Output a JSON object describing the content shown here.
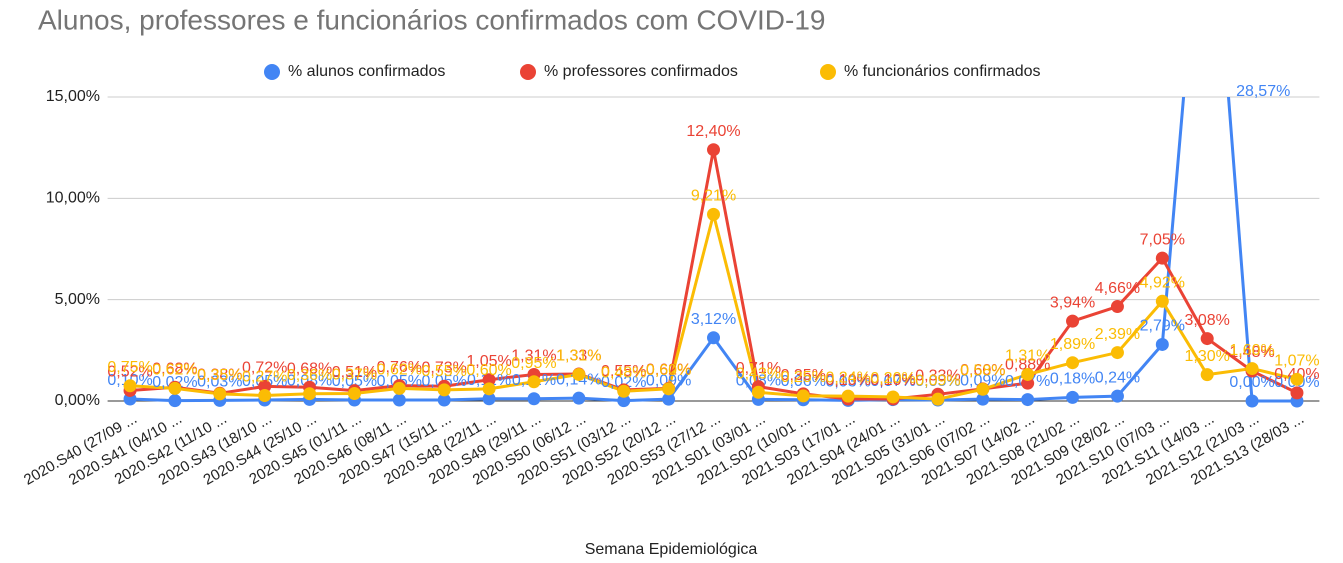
{
  "chart_data": {
    "type": "line",
    "title": "Alunos, professores e funcionários confirmados com COVID-19",
    "x_label": "Semana Epidemiológica",
    "categories": [
      "2020.S40 (27/09 ...",
      "2020.S41 (04/10 ...",
      "2020.S42 (11/10 ...",
      "2020.S43 (18/10 ...",
      "2020.S44 (25/10 ...",
      "2020.S45 (01/11 ...",
      "2020.S46 (08/11 ...",
      "2020.S47 (15/11 ...",
      "2020.S48 (22/11 ...",
      "2020.S49 (29/11 ...",
      "2020.S50 (06/12 ...",
      "2020.S51 (03/12 ...",
      "2020.S52 (20/12 ...",
      "2020.S53 (27/12 ...",
      "2021.S01 (03/01 ...",
      "2021.S02 (10/01 ...",
      "2021.S03 (17/01 ...",
      "2021.S04 (24/01 ...",
      "2021.S05 (31/01 ...",
      "2021.S06 (07/02 ...",
      "2021.S07 (14/02 ...",
      "2021.S08 (21/02 ...",
      "2021.S09 (28/02 ...",
      "2021.S10 (07/03 ...",
      "2021.S11 (14/03 ...",
      "2021.S12 (21/03 ...",
      "2021.S13 (28/03 ..."
    ],
    "series": [
      {
        "name": "% alunos confirmados",
        "color": "#4285f4",
        "values": [
          0.1,
          0.02,
          0.03,
          0.05,
          0.08,
          0.05,
          0.05,
          0.05,
          0.11,
          0.11,
          0.14,
          0.02,
          0.09,
          3.12,
          0.08,
          0.06,
          0.03,
          0.07,
          0.05,
          0.09,
          0.07,
          0.18,
          0.24,
          2.79,
          28.57,
          0,
          0
        ],
        "value_labels": [
          "0,10%",
          "0,02%",
          "0,03%",
          "0,05%",
          "0,08%",
          "0,05%",
          "0,05%",
          "0,05%",
          "0,11%",
          "0,11%",
          "0,14%",
          "0,02%",
          "0,09%",
          "3,12%",
          "0,08%",
          "0,06%",
          "0,03%",
          "0,07%",
          "0,05%",
          "0,09%",
          "0,07%",
          "0,18%",
          "0,24%",
          "2,79%",
          "28,57%",
          "0,00%",
          "0,00%"
        ]
      },
      {
        "name": "% professores confirmados",
        "color": "#ea4335",
        "values": [
          0.52,
          0.68,
          0.38,
          0.72,
          0.68,
          0.51,
          0.76,
          0.73,
          1.05,
          1.31,
          1.33,
          0.55,
          0.62,
          12.4,
          0.71,
          0.35,
          0.1,
          0.1,
          0.33,
          0.6,
          0.88,
          3.94,
          4.66,
          7.05,
          3.08,
          1.48,
          0.4
        ],
        "value_labels": [
          "0,52%",
          "0,68%",
          "0,38%",
          "0,72%",
          "0,68%",
          "0,51%",
          "0,76%",
          "0,73%",
          "1,05%",
          "1,31%",
          "1,33%",
          "0,55%",
          "0,62%",
          "12,40%",
          "0,71%",
          "0,35%",
          "0,10%",
          "0,10%",
          "0,33%",
          "0,60%",
          "0,88%",
          "3,94%",
          "4,66%",
          "7,05%",
          "3,08%",
          "1,48%",
          "0,40%"
        ]
      },
      {
        "name": "% funcionários confirmados",
        "color": "#fbbc04",
        "values": [
          0.75,
          0.62,
          0.35,
          0.27,
          0.36,
          0.37,
          0.62,
          0.55,
          0.6,
          0.95,
          1.31,
          0.48,
          0.6,
          9.21,
          0.43,
          0.25,
          0.24,
          0.2,
          0.09,
          0.58,
          1.31,
          1.89,
          2.39,
          4.92,
          1.3,
          1.6,
          1.07
        ],
        "value_labels": [
          "0,75%",
          "0,62%",
          "0,35%",
          "0,27%",
          "0,36%",
          "0,37%",
          "0,62%",
          "0,55%",
          "0,60%",
          "0,95%",
          "1,31%",
          "0,48%",
          "0,60%",
          "9,21%",
          "0,43%",
          "0,25%",
          "0,24%",
          "0,20%",
          "0,09%",
          "0,58%",
          "1,31%",
          "1,89%",
          "2,39%",
          "4,92%",
          "1,30%",
          "1,60%",
          "1,07%"
        ]
      }
    ],
    "ylim": [
      0,
      15
    ],
    "yticks": [
      {
        "value": 0,
        "label": "0,00%"
      },
      {
        "value": 5,
        "label": "5,00%"
      },
      {
        "value": 10,
        "label": "10,00%"
      },
      {
        "value": 15,
        "label": "15,00%"
      }
    ],
    "grid": true,
    "legend": "top"
  }
}
